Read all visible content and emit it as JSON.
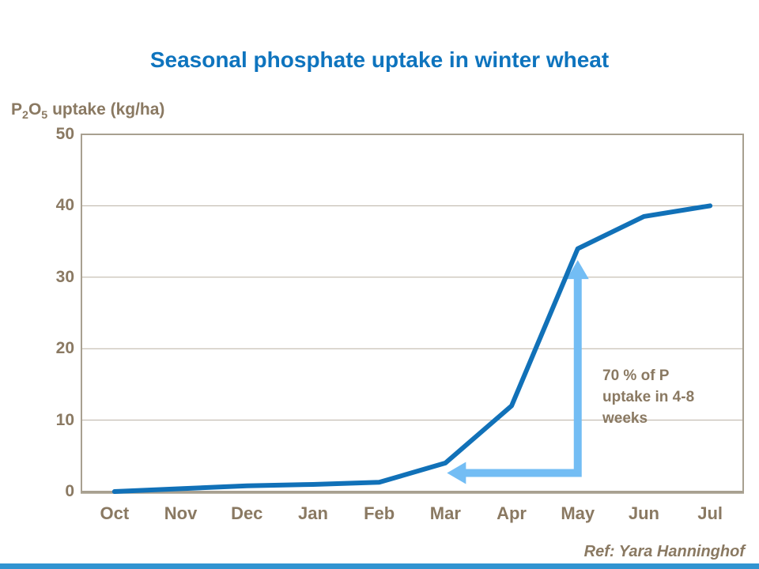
{
  "title": "Seasonal phosphate uptake in winter wheat",
  "y_axis_label": {
    "p": "P",
    "p_sub": "2",
    "o": "O",
    "o_sub": "5",
    "rest": " uptake (kg/ha)"
  },
  "annotation": {
    "lines": [
      "70 % of P",
      "uptake in 4-8",
      "weeks"
    ]
  },
  "reference": "Ref: Yara Hanninghof",
  "colors": {
    "title_blue": "#0E74BE",
    "line_blue": "#1171B8",
    "arrow_blue": "#73BDF4",
    "text_brown": "#8A7962",
    "axis": "#A8A090",
    "gridline": "#BAB1A3",
    "bottom_bar_blue": "#3194D1"
  },
  "chart_data": {
    "type": "line",
    "title": "Seasonal phosphate uptake in winter wheat",
    "xlabel": "",
    "ylabel": "P2O5 uptake (kg/ha)",
    "categories": [
      "Oct",
      "Nov",
      "Dec",
      "Jan",
      "Feb",
      "Mar",
      "Apr",
      "May",
      "Jun",
      "Jul"
    ],
    "series": [
      {
        "name": "P2O5 uptake (kg/ha)",
        "values": [
          0,
          0.4,
          0.8,
          1,
          1.3,
          4,
          12,
          34,
          38.5,
          40
        ]
      }
    ],
    "ylim": [
      0,
      50
    ],
    "yticks": [
      0,
      10,
      20,
      30,
      40,
      50
    ],
    "grid": "horizontal",
    "legend": "none",
    "annotation_arrow": {
      "shape": "L-shaped, double-headed",
      "from_month": "Mar",
      "to_month": "May",
      "from_value": 2.6,
      "to_value": 32.4,
      "label": "70 % of P uptake in 4-8 weeks"
    }
  }
}
